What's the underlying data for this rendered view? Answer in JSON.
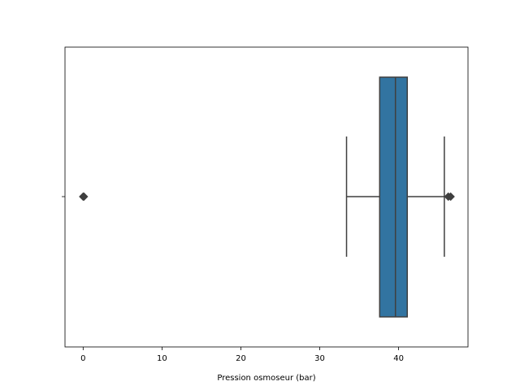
{
  "chart_data": {
    "type": "boxplot",
    "orientation": "horizontal",
    "xlabel": "Pression osmoseur (bar)",
    "xlim": [
      -2.3,
      48.8
    ],
    "xticks": [
      0,
      10,
      20,
      30,
      40
    ],
    "grid": false,
    "box": {
      "whisker_low": 33.4,
      "q1": 37.6,
      "median": 39.6,
      "q3": 41.1,
      "whisker_high": 45.8
    },
    "outliers": [
      0.0,
      0.1,
      46.3,
      46.6
    ],
    "colors": {
      "box_fill": "#3274a1",
      "lines": "#3f3f3f",
      "axes": "#000000"
    }
  }
}
